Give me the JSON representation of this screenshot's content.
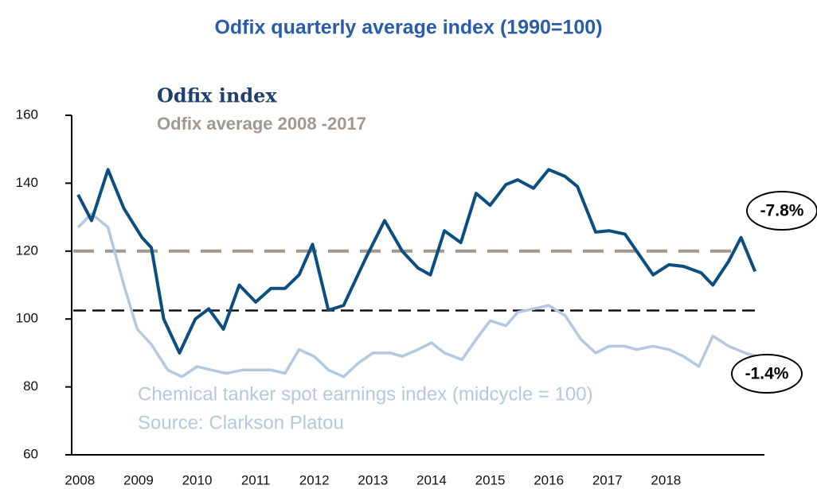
{
  "chart_data": {
    "type": "line",
    "title": "Odfix quarterly average index (1990=100)",
    "xlim": [
      2007.86,
      2019.68
    ],
    "xticks": [
      2008,
      2009,
      2010,
      2011,
      2012,
      2013,
      2014,
      2015,
      2016,
      2017,
      2018
    ],
    "ylim": [
      60,
      160
    ],
    "yticks": [
      60,
      80,
      100,
      120,
      140,
      160
    ],
    "series": [
      {
        "name": "Odfix index",
        "color": "#0d4e80",
        "x": [
          2007.97,
          2008.2,
          2008.48,
          2008.75,
          2009.06,
          2009.22,
          2009.43,
          2009.7,
          2009.97,
          2010.2,
          2010.45,
          2010.72,
          2011.0,
          2011.26,
          2011.5,
          2011.74,
          2011.97,
          2012.24,
          2012.5,
          2012.88,
          2013.2,
          2013.5,
          2013.77,
          2013.98,
          2014.22,
          2014.5,
          2014.76,
          2015.0,
          2015.27,
          2015.47,
          2015.74,
          2016.0,
          2016.28,
          2016.49,
          2016.8,
          2017.03,
          2017.3,
          2017.5,
          2017.78,
          2018.05,
          2018.3,
          2018.6,
          2018.8,
          2019.07,
          2019.28,
          2019.52
        ],
        "values": [
          136.6,
          129,
          144,
          132.6,
          124,
          121,
          100,
          90,
          100,
          103,
          97,
          110,
          105,
          109,
          109,
          113,
          122,
          102.6,
          104,
          118,
          129,
          120,
          115,
          113,
          126,
          122.5,
          137,
          133.5,
          139.6,
          141,
          138.5,
          144,
          142,
          139,
          125.6,
          126,
          125,
          120,
          113,
          116,
          115.5,
          113.6,
          110,
          117,
          124,
          114
        ]
      },
      {
        "name": "Chemical tanker spot earnings index (midcycle = 100)",
        "color": "#b4c8e0",
        "x": [
          2007.97,
          2008.2,
          2008.48,
          2008.75,
          2008.98,
          2009.22,
          2009.5,
          2009.74,
          2010.0,
          2010.24,
          2010.5,
          2010.78,
          2011.05,
          2011.26,
          2011.5,
          2011.74,
          2012.0,
          2012.24,
          2012.5,
          2012.75,
          2013.0,
          2013.3,
          2013.5,
          2013.77,
          2014.0,
          2014.22,
          2014.52,
          2014.76,
          2015.0,
          2015.27,
          2015.47,
          2015.74,
          2016.0,
          2016.28,
          2016.55,
          2016.8,
          2017.03,
          2017.3,
          2017.5,
          2017.78,
          2018.05,
          2018.3,
          2018.56,
          2018.8,
          2019.07,
          2019.35,
          2019.55
        ],
        "values": [
          127,
          131,
          127,
          110,
          97,
          92.5,
          85,
          83,
          86,
          85,
          84,
          85,
          85,
          85,
          84,
          91,
          89,
          85,
          83,
          87,
          90,
          90,
          89,
          91,
          93,
          90,
          88,
          94,
          99.5,
          98,
          102,
          103,
          104,
          101,
          94,
          90,
          92,
          92,
          91,
          92,
          91,
          89,
          86,
          95,
          92,
          90,
          89
        ]
      }
    ],
    "reference_lines": [
      {
        "name": "Odfix average 2008 -2017",
        "value": 120,
        "color": "#a39890"
      },
      {
        "value": 102.5,
        "color": "#111111"
      }
    ],
    "source": "Source: Clarkson Platou",
    "annotations": [
      "-7.8%",
      "-1.4%"
    ]
  }
}
